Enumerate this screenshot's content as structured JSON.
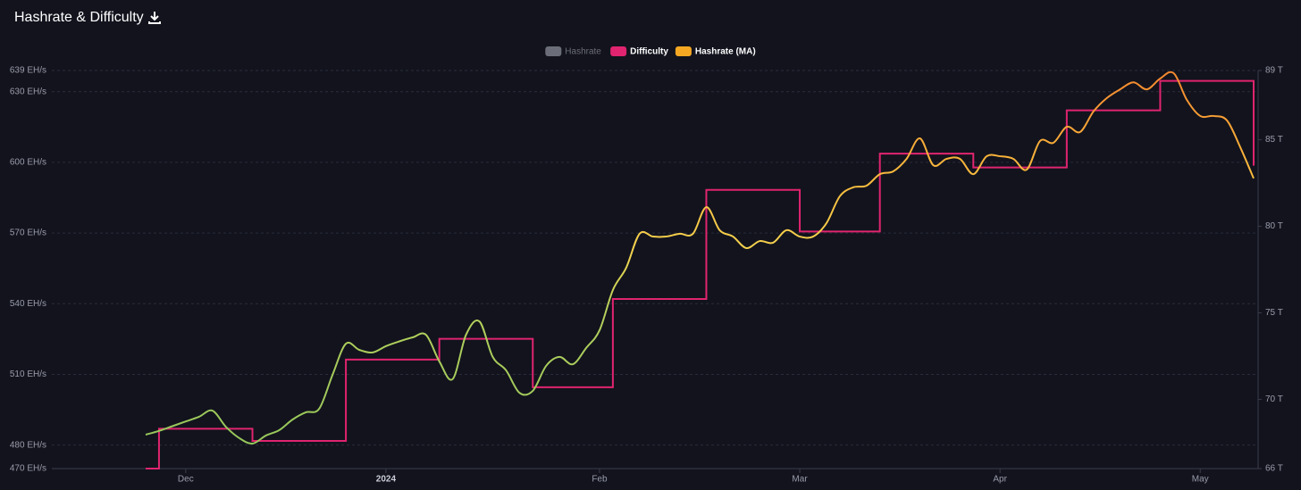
{
  "chart_data": {
    "type": "line",
    "title": "Hashrate & Difficulty",
    "categories": [
      null,
      null,
      null,
      "Dec",
      null,
      null,
      null,
      null,
      null,
      null,
      null,
      null,
      null,
      null,
      null,
      null,
      null,
      null,
      "2024",
      null,
      null,
      null,
      null,
      null,
      null,
      null,
      null,
      null,
      null,
      null,
      null,
      null,
      null,
      null,
      "Feb",
      null,
      null,
      null,
      null,
      null,
      null,
      null,
      null,
      null,
      null,
      null,
      null,
      null,
      null,
      "Mar",
      null,
      null,
      null,
      null,
      null,
      null,
      null,
      null,
      null,
      null,
      null,
      null,
      null,
      null,
      "Apr",
      null,
      null,
      null,
      null,
      null,
      null,
      null,
      null,
      null,
      null,
      null,
      null,
      null,
      null,
      "May",
      null,
      null,
      null,
      null
    ],
    "series": [
      {
        "name": "Difficulty",
        "color": "#e0246f",
        "axis": "y2",
        "step": true,
        "values": [
          66,
          68.3,
          68.3,
          68.3,
          68.3,
          68.3,
          68.3,
          68.3,
          67.6,
          67.6,
          67.6,
          67.6,
          67.6,
          67.6,
          67.6,
          72.3,
          72.3,
          72.3,
          72.3,
          72.3,
          72.3,
          72.3,
          73.5,
          73.5,
          73.5,
          73.5,
          73.5,
          73.5,
          73.5,
          70.7,
          70.7,
          70.7,
          70.7,
          70.7,
          70.7,
          75.8,
          75.8,
          75.8,
          75.8,
          75.8,
          75.8,
          75.8,
          82.1,
          82.1,
          82.1,
          82.1,
          82.1,
          82.1,
          82.1,
          79.7,
          79.7,
          79.7,
          79.7,
          79.7,
          79.7,
          84.2,
          84.2,
          84.2,
          84.2,
          84.2,
          84.2,
          84.2,
          83.4,
          83.4,
          83.4,
          83.4,
          83.4,
          83.4,
          83.4,
          86.7,
          86.7,
          86.7,
          86.7,
          86.7,
          86.7,
          86.7,
          88.4,
          88.4,
          88.4,
          88.4,
          88.4,
          88.4,
          88.4,
          83.5
        ]
      },
      {
        "name": "Hashrate (MA)",
        "color": "#f7a823",
        "values": [
          484.4,
          486,
          488,
          490,
          492,
          494.6,
          487.8,
          483,
          480.6,
          484,
          486.3,
          490.8,
          493.9,
          495.4,
          509.8,
          523,
          520.4,
          519.3,
          522,
          524,
          525.7,
          526.8,
          515.5,
          508,
          526.8,
          532.5,
          517.4,
          511.7,
          502.2,
          503,
          513.6,
          517.4,
          514.3,
          521.2,
          528.7,
          545.8,
          555.3,
          569.7,
          568.5,
          568.5,
          569.7,
          569.7,
          581,
          571.2,
          568.5,
          563.6,
          566.6,
          565.9,
          571.2,
          568.5,
          568.5,
          574.2,
          585.6,
          589.4,
          590.1,
          595,
          596.2,
          601.5,
          610.2,
          598.8,
          601.5,
          601.5,
          595,
          602.6,
          602.6,
          601.5,
          596.9,
          609.1,
          608.3,
          615.1,
          612.9,
          621.6,
          627.3,
          631,
          634,
          631,
          635.6,
          637.9,
          626.5,
          619.7,
          619.7,
          617.8,
          606.4,
          593.2
        ]
      }
    ],
    "hidden_series": [
      {
        "name": "Hashrate",
        "color": "#6b6e78"
      }
    ],
    "ylim": [
      470,
      639
    ],
    "yticks": [
      {
        "value": 470,
        "label": "470 EH/s"
      },
      {
        "value": 480,
        "label": "480 EH/s"
      },
      {
        "value": 510,
        "label": "510 EH/s"
      },
      {
        "value": 540,
        "label": "540 EH/s"
      },
      {
        "value": 570,
        "label": "570 EH/s"
      },
      {
        "value": 600,
        "label": "600 EH/s"
      },
      {
        "value": 630,
        "label": "630 EH/s"
      },
      {
        "value": 639,
        "label": "639 EH/s"
      }
    ],
    "y2lim": [
      66,
      89
    ],
    "y2ticks": [
      {
        "value": 66,
        "label": "66 T"
      },
      {
        "value": 70,
        "label": "70 T"
      },
      {
        "value": 75,
        "label": "75 T"
      },
      {
        "value": 80,
        "label": "80 T"
      },
      {
        "value": 85,
        "label": "85 T"
      },
      {
        "value": 89,
        "label": "89 T"
      }
    ],
    "grid": true,
    "legend": "top"
  }
}
